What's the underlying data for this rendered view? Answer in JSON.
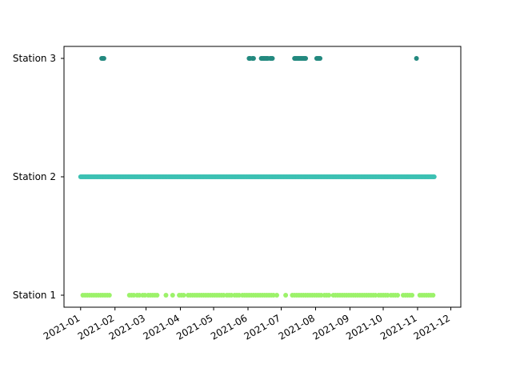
{
  "chart_data": {
    "type": "scatter",
    "title": "",
    "xlabel": "",
    "ylabel": "",
    "x_axis": {
      "kind": "date",
      "range": [
        "2020-12-17",
        "2021-12-10"
      ],
      "ticks": [
        "2021-01-01",
        "2021-02-01",
        "2021-03-01",
        "2021-04-01",
        "2021-05-01",
        "2021-06-01",
        "2021-07-01",
        "2021-08-01",
        "2021-09-01",
        "2021-10-01",
        "2021-11-01",
        "2021-12-01"
      ],
      "tick_labels": [
        "2021-01",
        "2021-02",
        "2021-03",
        "2021-04",
        "2021-05",
        "2021-06",
        "2021-07",
        "2021-08",
        "2021-09",
        "2021-10",
        "2021-11",
        "2021-12"
      ],
      "tick_label_rotation_deg": 30
    },
    "y_axis": {
      "kind": "category",
      "categories": [
        "Station 1",
        "Station 2",
        "Station 3"
      ]
    },
    "grid": false,
    "legend": "none",
    "series": [
      {
        "category": "Station 1",
        "color": "#9cf26a",
        "dates": [
          "2021-01-03",
          "2021-01-05",
          "2021-01-07",
          "2021-01-09",
          "2021-01-11",
          "2021-01-13",
          "2021-01-15",
          "2021-01-17",
          "2021-01-19",
          "2021-01-21",
          "2021-01-23",
          "2021-01-25",
          "2021-01-27",
          "2021-02-14",
          "2021-02-16",
          "2021-02-18",
          "2021-02-21",
          "2021-02-23",
          "2021-02-26",
          "2021-02-28",
          "2021-03-03",
          "2021-03-05",
          "2021-03-07",
          "2021-03-09",
          "2021-03-11",
          "2021-03-19",
          "2021-03-25",
          "2021-03-31",
          "2021-04-02",
          "2021-04-04",
          "2021-04-08",
          "2021-04-10",
          "2021-04-12",
          "2021-04-14",
          "2021-04-16",
          "2021-04-18",
          "2021-04-20",
          "2021-04-22",
          "2021-04-24",
          "2021-04-26",
          "2021-04-28",
          "2021-04-30",
          "2021-05-02",
          "2021-05-04",
          "2021-05-06",
          "2021-05-08",
          "2021-05-10",
          "2021-05-13",
          "2021-05-15",
          "2021-05-17",
          "2021-05-20",
          "2021-05-22",
          "2021-05-24",
          "2021-05-27",
          "2021-05-29",
          "2021-05-31",
          "2021-06-02",
          "2021-06-04",
          "2021-06-06",
          "2021-06-08",
          "2021-06-10",
          "2021-06-12",
          "2021-06-14",
          "2021-06-16",
          "2021-06-18",
          "2021-06-20",
          "2021-06-22",
          "2021-06-24",
          "2021-06-27",
          "2021-07-05",
          "2021-07-11",
          "2021-07-13",
          "2021-07-15",
          "2021-07-17",
          "2021-07-19",
          "2021-07-21",
          "2021-07-23",
          "2021-07-25",
          "2021-07-27",
          "2021-07-29",
          "2021-07-31",
          "2021-08-02",
          "2021-08-04",
          "2021-08-06",
          "2021-08-09",
          "2021-08-11",
          "2021-08-13",
          "2021-08-17",
          "2021-08-19",
          "2021-08-21",
          "2021-08-23",
          "2021-08-25",
          "2021-08-27",
          "2021-08-29",
          "2021-08-31",
          "2021-09-02",
          "2021-09-04",
          "2021-09-06",
          "2021-09-08",
          "2021-09-10",
          "2021-09-12",
          "2021-09-14",
          "2021-09-16",
          "2021-09-18",
          "2021-09-20",
          "2021-09-22",
          "2021-09-24",
          "2021-09-27",
          "2021-09-29",
          "2021-10-01",
          "2021-10-03",
          "2021-10-05",
          "2021-10-08",
          "2021-10-10",
          "2021-10-12",
          "2021-10-14",
          "2021-10-19",
          "2021-10-21",
          "2021-10-23",
          "2021-10-25",
          "2021-10-27",
          "2021-11-03",
          "2021-11-05",
          "2021-11-07",
          "2021-11-09",
          "2021-11-11",
          "2021-11-13",
          "2021-11-15"
        ]
      },
      {
        "category": "Station 2",
        "color": "#3cc1b3",
        "note": "continuous daily readings",
        "date_range": [
          "2021-01-01",
          "2021-11-16"
        ]
      },
      {
        "category": "Station 3",
        "color": "#23897f",
        "dates": [
          "2021-01-20",
          "2021-01-21",
          "2021-01-22",
          "2021-06-02",
          "2021-06-03",
          "2021-06-05",
          "2021-06-06",
          "2021-06-13",
          "2021-06-14",
          "2021-06-15",
          "2021-06-16",
          "2021-06-17",
          "2021-06-18",
          "2021-06-19",
          "2021-06-21",
          "2021-06-22",
          "2021-06-23",
          "2021-07-13",
          "2021-07-14",
          "2021-07-15",
          "2021-07-16",
          "2021-07-17",
          "2021-07-18",
          "2021-07-19",
          "2021-07-20",
          "2021-07-21",
          "2021-07-22",
          "2021-07-23",
          "2021-08-02",
          "2021-08-03",
          "2021-08-04",
          "2021-08-05",
          "2021-10-31"
        ]
      }
    ]
  }
}
